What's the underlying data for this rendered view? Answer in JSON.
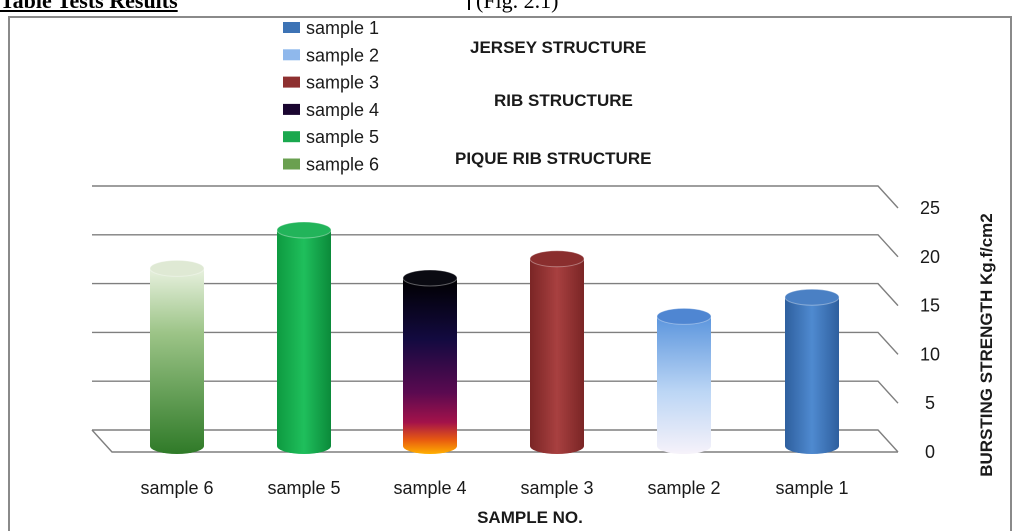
{
  "page_header": {
    "left_text": "Table Tests Results",
    "right_text": "(Fig. 2.1)"
  },
  "chart_data": {
    "type": "bar",
    "style": "3d-cylinder",
    "categories": [
      "sample 6",
      "sample 5",
      "sample 4",
      "sample 3",
      "sample 2",
      "sample 1"
    ],
    "series": [
      {
        "values": [
          18.5,
          22.5,
          17.5,
          19.5,
          13.5,
          15.5
        ]
      }
    ],
    "bar_colors": [
      "#4a8a3a",
      "#1aa84e",
      "#3a0838",
      "#8e3030",
      "#8fb8ec",
      "#3d73b5"
    ],
    "xlabel": "SAMPLE NO.",
    "ylabel": "BURSTING STRENGTH  Kg.f/cm2",
    "ylim": [
      0,
      25
    ],
    "yticks": [
      "0",
      "5",
      "10",
      "15",
      "20",
      "25"
    ],
    "y_axis_side": "right",
    "grid": true,
    "legend": {
      "position": "top-left",
      "entries": [
        {
          "label": "sample 1",
          "color": "#3d73b5"
        },
        {
          "label": "sample 2",
          "color": "#8fb8ec"
        },
        {
          "label": "sample 3",
          "color": "#8e3030"
        },
        {
          "label": "sample 4",
          "color": "#1a0530"
        },
        {
          "label": "sample 5",
          "color": "#1aa84e"
        },
        {
          "label": "sample 6",
          "color": "#6aa050"
        }
      ]
    },
    "annotations": [
      "JERSEY STRUCTURE",
      "RIB STRUCTURE",
      "PIQUE RIB STRUCTURE"
    ]
  }
}
